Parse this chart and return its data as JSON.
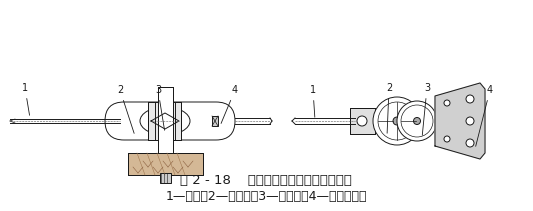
{
  "title_line1": "图 2 - 18    固定式手动弯管器结构示意图",
  "title_line2": "1—手柄；2—动胎轮；3—定胎轮；4—管子夹持器",
  "bg_color": "#ffffff",
  "line_color": "#1a1a1a",
  "title_fontsize": 9.5,
  "caption_fontsize": 9.0,
  "fig_width": 5.33,
  "fig_height": 2.11,
  "dpi": 100
}
